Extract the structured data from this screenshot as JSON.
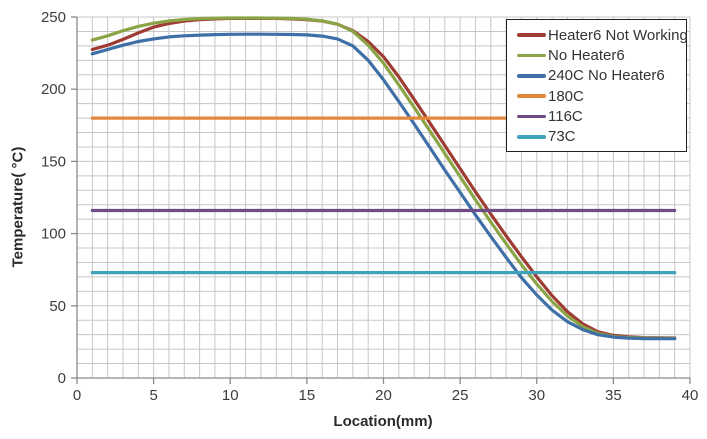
{
  "chart_data": {
    "type": "line",
    "title": "",
    "xlabel": "Location(mm)",
    "ylabel": "Temperature( °C)",
    "xlim": [
      0,
      40
    ],
    "ylim": [
      0,
      250
    ],
    "x_major_ticks": [
      0,
      5,
      10,
      15,
      20,
      25,
      30,
      35,
      40
    ],
    "y_major_ticks": [
      0,
      50,
      100,
      150,
      200,
      250
    ],
    "x_minor_step": 1,
    "y_minor_step": 10,
    "grid": "major-and-minor",
    "legend_position": "inside-top-right",
    "x": [
      1,
      2,
      3,
      4,
      5,
      6,
      7,
      8,
      9,
      10,
      11,
      12,
      13,
      14,
      15,
      16,
      17,
      18,
      19,
      20,
      21,
      22,
      23,
      24,
      25,
      26,
      27,
      28,
      29,
      30,
      31,
      32,
      33,
      34,
      35,
      36,
      37,
      38,
      39
    ],
    "series": [
      {
        "name": "Heater6 Not Working",
        "color": "#9e3b33",
        "values": [
          227.5,
          230.5,
          234.5,
          239,
          243,
          245.5,
          247.2,
          248.2,
          248.7,
          249,
          249,
          249,
          249,
          248.7,
          248.2,
          247.2,
          245,
          240.5,
          233,
          222.5,
          208.5,
          193,
          177,
          161,
          145,
          129,
          113.5,
          98.5,
          84,
          70,
          57,
          46,
          37.5,
          32,
          29.5,
          28.5,
          28,
          27.8,
          27.7
        ]
      },
      {
        "name": "No Heater6",
        "color": "#8ba446",
        "values": [
          234,
          237,
          240.5,
          243.5,
          245.7,
          247.2,
          248.3,
          248.9,
          249.2,
          249.3,
          249.3,
          249.3,
          249.2,
          249,
          248.5,
          247.4,
          245,
          240,
          230.5,
          218,
          203,
          187.5,
          171.5,
          155.5,
          139.5,
          123.5,
          108,
          93,
          78.5,
          65,
          53,
          43,
          35.5,
          30.8,
          28.7,
          28,
          27.7,
          27.5,
          27.4
        ]
      },
      {
        "name": "240C No Heater6",
        "color": "#3e6fa7",
        "values": [
          224.5,
          227.5,
          230.5,
          233,
          234.8,
          236.2,
          237,
          237.5,
          237.8,
          238,
          238.1,
          238.1,
          238,
          237.9,
          237.6,
          236.8,
          234.8,
          230,
          220,
          206.5,
          191.5,
          176,
          160,
          144,
          128.5,
          113,
          98,
          83.5,
          69.5,
          57.5,
          47,
          39,
          33.5,
          30,
          28.3,
          27.6,
          27.3,
          27.2,
          27.2
        ]
      },
      {
        "name": "180C",
        "color": "#e3883b",
        "constant": 180
      },
      {
        "name": "116C",
        "color": "#6e4c85",
        "constant": 116
      },
      {
        "name": "73C",
        "color": "#3ea2bb",
        "constant": 73
      }
    ]
  },
  "style_colors": {
    "gridline": "#c7c7c7",
    "axis_line": "#8a8a8a",
    "tick_text": "#3d3d3d",
    "legend_border": "#1f1f1f",
    "background": "#ffffff"
  }
}
